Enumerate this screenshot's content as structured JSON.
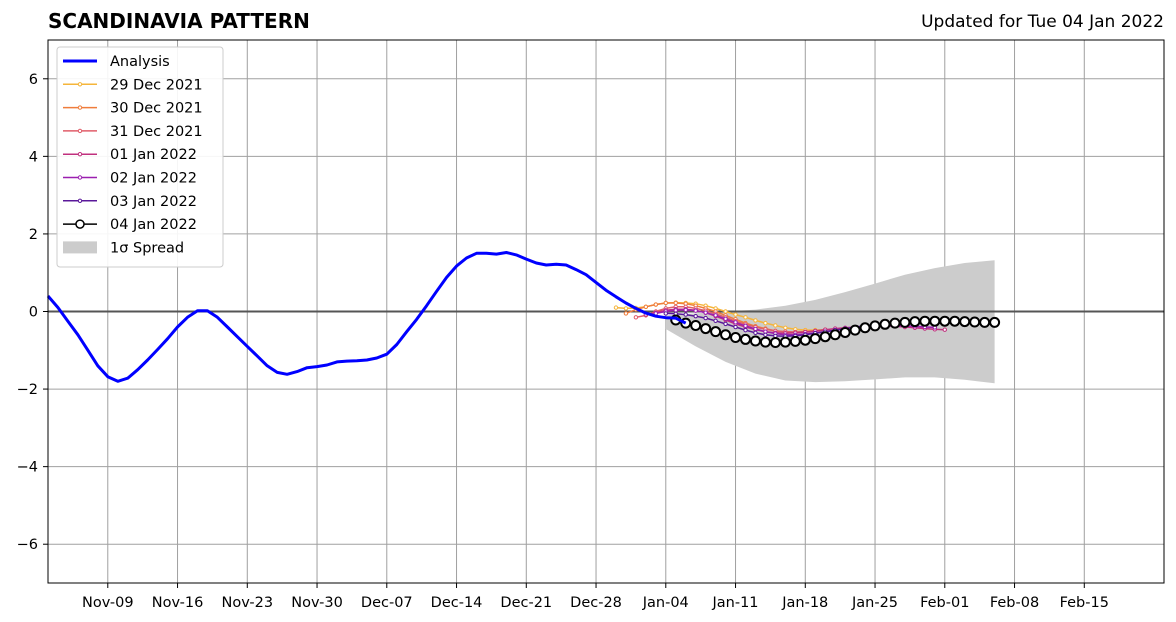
{
  "header": {
    "title": "SCANDINAVIA PATTERN",
    "updated": "Updated for Tue 04 Jan 2022"
  },
  "chart_data": {
    "type": "line",
    "title": "SCANDINAVIA PATTERN",
    "xlabel": "",
    "ylabel": "",
    "x_start": "2021-11-03",
    "x_end": "2022-02-23",
    "ylim": [
      -7,
      7
    ],
    "y_ticks": [
      -6,
      -4,
      -2,
      0,
      2,
      4,
      6
    ],
    "x_ticks": [
      {
        "date": "2021-11-09",
        "label": "Nov-09"
      },
      {
        "date": "2021-11-16",
        "label": "Nov-16"
      },
      {
        "date": "2021-11-23",
        "label": "Nov-23"
      },
      {
        "date": "2021-11-30",
        "label": "Nov-30"
      },
      {
        "date": "2021-12-07",
        "label": "Dec-07"
      },
      {
        "date": "2021-12-14",
        "label": "Dec-14"
      },
      {
        "date": "2021-12-21",
        "label": "Dec-21"
      },
      {
        "date": "2021-12-28",
        "label": "Dec-28"
      },
      {
        "date": "2022-01-04",
        "label": "Jan-04"
      },
      {
        "date": "2022-01-11",
        "label": "Jan-11"
      },
      {
        "date": "2022-01-18",
        "label": "Jan-18"
      },
      {
        "date": "2022-01-25",
        "label": "Jan-25"
      },
      {
        "date": "2022-02-01",
        "label": "Feb-01"
      },
      {
        "date": "2022-02-08",
        "label": "Feb-08"
      },
      {
        "date": "2022-02-15",
        "label": "Feb-15"
      }
    ],
    "grid": true,
    "legend": "top-left",
    "analysis": {
      "name": "Analysis",
      "color": "#0000ff",
      "start": "2021-11-03",
      "values": [
        0.4,
        0.1,
        -0.25,
        -0.6,
        -1.0,
        -1.4,
        -1.68,
        -1.8,
        -1.72,
        -1.5,
        -1.25,
        -0.98,
        -0.7,
        -0.4,
        -0.15,
        0.02,
        0.02,
        -0.15,
        -0.4,
        -0.65,
        -0.9,
        -1.15,
        -1.4,
        -1.57,
        -1.62,
        -1.55,
        -1.45,
        -1.42,
        -1.38,
        -1.3,
        -1.28,
        -1.27,
        -1.25,
        -1.2,
        -1.1,
        -0.85,
        -0.52,
        -0.2,
        0.15,
        0.52,
        0.88,
        1.17,
        1.38,
        1.5,
        1.5,
        1.48,
        1.52,
        1.46,
        1.35,
        1.25,
        1.2,
        1.22,
        1.2,
        1.08,
        0.95,
        0.75,
        0.55,
        0.38,
        0.22,
        0.08,
        -0.04,
        -0.12,
        -0.16,
        -0.17,
        -0.3
      ]
    },
    "spread": {
      "name": "1σ Spread",
      "color": "#cccccc",
      "points": [
        {
          "date": "2022-01-04",
          "lower": -0.45,
          "upper": -0.1
        },
        {
          "date": "2022-01-07",
          "lower": -0.9,
          "upper": -0.05
        },
        {
          "date": "2022-01-10",
          "lower": -1.3,
          "upper": 0.0
        },
        {
          "date": "2022-01-13",
          "lower": -1.6,
          "upper": 0.05
        },
        {
          "date": "2022-01-16",
          "lower": -1.78,
          "upper": 0.15
        },
        {
          "date": "2022-01-19",
          "lower": -1.82,
          "upper": 0.3
        },
        {
          "date": "2022-01-22",
          "lower": -1.8,
          "upper": 0.5
        },
        {
          "date": "2022-01-25",
          "lower": -1.75,
          "upper": 0.72
        },
        {
          "date": "2022-01-28",
          "lower": -1.7,
          "upper": 0.95
        },
        {
          "date": "2022-01-31",
          "lower": -1.7,
          "upper": 1.12
        },
        {
          "date": "2022-02-03",
          "lower": -1.76,
          "upper": 1.25
        },
        {
          "date": "2022-02-06",
          "lower": -1.85,
          "upper": 1.32
        }
      ]
    },
    "series": [
      {
        "name": "29 Dec 2021",
        "color": "#f5b53a",
        "start": "2021-12-30",
        "values": [
          0.1,
          0.08,
          0.09,
          0.12,
          0.18,
          0.22,
          0.23,
          0.22,
          0.2,
          0.15,
          0.08,
          0.0,
          -0.08,
          -0.15,
          -0.23,
          -0.3,
          -0.36,
          -0.42,
          -0.46,
          -0.48,
          -0.48,
          -0.47
        ]
      },
      {
        "name": "30 Dec 2021",
        "color": "#ef7d3c",
        "start": "2021-12-31",
        "values": [
          -0.05,
          0.05,
          0.12,
          0.18,
          0.22,
          0.22,
          0.2,
          0.15,
          0.08,
          0.0,
          -0.1,
          -0.2,
          -0.3,
          -0.38,
          -0.44,
          -0.5,
          -0.52,
          -0.53,
          -0.52,
          -0.5,
          -0.47
        ]
      },
      {
        "name": "31 Dec 2021",
        "color": "#e05d6a",
        "start": "2022-01-01",
        "values": [
          -0.15,
          -0.1,
          0.0,
          0.08,
          0.12,
          0.12,
          0.08,
          0.02,
          -0.06,
          -0.15,
          -0.25,
          -0.33,
          -0.4,
          -0.46,
          -0.5,
          -0.52,
          -0.53,
          -0.52,
          -0.5,
          -0.48
        ]
      },
      {
        "name": "01 Jan 2022",
        "color": "#c0307e",
        "start": "2022-01-02",
        "values": [
          -0.08,
          -0.03,
          0.03,
          0.06,
          0.06,
          0.03,
          -0.03,
          -0.12,
          -0.22,
          -0.32,
          -0.4,
          -0.47,
          -0.52,
          -0.55,
          -0.56,
          -0.55,
          -0.53,
          -0.5,
          -0.47,
          -0.44,
          -0.42,
          -0.4,
          -0.38,
          -0.37,
          -0.37,
          -0.38,
          -0.4,
          -0.42,
          -0.44,
          -0.46,
          -0.47
        ]
      },
      {
        "name": "02 Jan 2022",
        "color": "#9b1fb0",
        "start": "2022-01-03",
        "values": [
          -0.05,
          0.0,
          0.03,
          0.04,
          0.02,
          -0.03,
          -0.1,
          -0.19,
          -0.28,
          -0.37,
          -0.45,
          -0.52,
          -0.57,
          -0.6,
          -0.6,
          -0.58,
          -0.55,
          -0.52,
          -0.48,
          -0.45,
          -0.42,
          -0.4,
          -0.38,
          -0.37,
          -0.37,
          -0.37,
          -0.38,
          -0.4,
          -0.41
        ]
      },
      {
        "name": "03 Jan 2022",
        "color": "#5a189a",
        "start": "2022-01-04",
        "values": [
          -0.05,
          -0.06,
          -0.08,
          -0.12,
          -0.17,
          -0.24,
          -0.32,
          -0.4,
          -0.48,
          -0.55,
          -0.6,
          -0.63,
          -0.64,
          -0.63,
          -0.6,
          -0.56,
          -0.52,
          -0.48,
          -0.44,
          -0.4,
          -0.37,
          -0.35,
          -0.33,
          -0.32,
          -0.31,
          -0.3,
          -0.3,
          -0.3,
          -0.3,
          -0.3
        ]
      },
      {
        "name": "04 Jan 2022",
        "color": "#000000",
        "start": "2022-01-05",
        "values": [
          -0.22,
          -0.3,
          -0.36,
          -0.44,
          -0.52,
          -0.6,
          -0.67,
          -0.72,
          -0.76,
          -0.79,
          -0.8,
          -0.79,
          -0.77,
          -0.74,
          -0.7,
          -0.65,
          -0.6,
          -0.54,
          -0.48,
          -0.42,
          -0.37,
          -0.33,
          -0.3,
          -0.28,
          -0.26,
          -0.25,
          -0.25,
          -0.25,
          -0.25,
          -0.26,
          -0.27,
          -0.28,
          -0.28
        ]
      }
    ]
  }
}
